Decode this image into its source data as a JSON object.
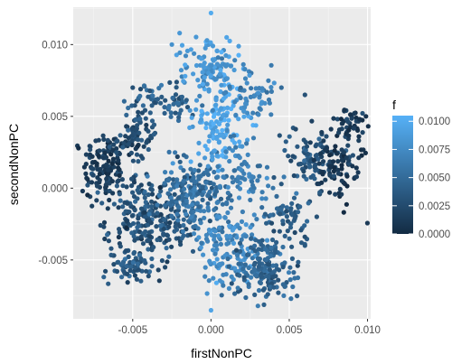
{
  "chart_data": {
    "type": "scatter",
    "xlabel": "firstNonPC",
    "ylabel": "secondNonPC",
    "xlim": [
      -0.0088,
      0.0102
    ],
    "ylim": [
      -0.0091,
      0.0126
    ],
    "x_ticks": [
      -0.005,
      0.0,
      0.005,
      0.01
    ],
    "x_tick_labels": [
      "-0.005",
      "0.000",
      "0.005",
      "0.010"
    ],
    "y_ticks": [
      -0.005,
      0.0,
      0.005,
      0.01
    ],
    "y_tick_labels": [
      "-0.005",
      "0.000",
      "0.005",
      "0.010"
    ],
    "grid": true,
    "background": "#ebebeb",
    "legend": {
      "title": "f",
      "position": "right",
      "values": [
        0.0,
        0.0025,
        0.005,
        0.0075,
        0.01
      ],
      "labels": [
        "0.0000",
        "0.0025",
        "0.0050",
        "0.0075",
        "0.0100"
      ],
      "low_color": "#132b43",
      "high_color": "#56b1f7"
    },
    "color_range": [
      0.0,
      0.0105
    ],
    "clusters": [
      {
        "center": [
          -0.0068,
          0.0015
        ],
        "spread": [
          0.0009,
          0.0017
        ],
        "count": 130,
        "f": 0.0015
      },
      {
        "center": [
          -0.0048,
          0.0035
        ],
        "spread": [
          0.0009,
          0.001
        ],
        "count": 80,
        "f": 0.0025
      },
      {
        "center": [
          -0.004,
          -0.002
        ],
        "spread": [
          0.0018,
          0.002
        ],
        "count": 260,
        "f": 0.003
      },
      {
        "center": [
          -0.005,
          -0.0055
        ],
        "spread": [
          0.001,
          0.0008
        ],
        "count": 60,
        "f": 0.0035
      },
      {
        "center": [
          -0.001,
          -0.0005
        ],
        "spread": [
          0.0016,
          0.0018
        ],
        "count": 200,
        "f": 0.0055
      },
      {
        "center": [
          -0.003,
          0.006
        ],
        "spread": [
          0.0015,
          0.0011
        ],
        "count": 70,
        "f": 0.0045
      },
      {
        "center": [
          0.0,
          0.0085
        ],
        "spread": [
          0.0012,
          0.0012
        ],
        "count": 110,
        "f": 0.0085
      },
      {
        "center": [
          0.0005,
          0.0045
        ],
        "spread": [
          0.0011,
          0.002
        ],
        "count": 130,
        "f": 0.0095
      },
      {
        "center": [
          0.0025,
          0.0065
        ],
        "spread": [
          0.0012,
          0.0011
        ],
        "count": 60,
        "f": 0.007
      },
      {
        "center": [
          0.0022,
          0.0008
        ],
        "spread": [
          0.0011,
          0.0015
        ],
        "count": 70,
        "f": 0.0065
      },
      {
        "center": [
          0.001,
          -0.004
        ],
        "spread": [
          0.0014,
          0.0017
        ],
        "count": 130,
        "f": 0.0075
      },
      {
        "center": [
          0.0035,
          -0.0055
        ],
        "spread": [
          0.0014,
          0.0015
        ],
        "count": 170,
        "f": 0.0045
      },
      {
        "center": [
          0.005,
          -0.002
        ],
        "spread": [
          0.0011,
          0.0012
        ],
        "count": 60,
        "f": 0.004
      },
      {
        "center": [
          0.0065,
          0.002
        ],
        "spread": [
          0.0013,
          0.0014
        ],
        "count": 90,
        "f": 0.003
      },
      {
        "center": [
          0.0082,
          0.0015
        ],
        "spread": [
          0.001,
          0.0017
        ],
        "count": 90,
        "f": 0.001
      },
      {
        "center": [
          0.009,
          0.0045
        ],
        "spread": [
          0.0008,
          0.0006
        ],
        "count": 40,
        "f": 0.001
      }
    ],
    "extra_points": [
      [
        0.0,
        0.0122,
        0.01
      ],
      [
        -0.0025,
        0.01,
        0.008
      ],
      [
        -0.002,
        0.0108,
        0.0085
      ],
      [
        0.001,
        0.0105,
        0.0095
      ],
      [
        -0.005,
        0.007,
        0.003
      ],
      [
        -0.0045,
        0.0069,
        0.0025
      ],
      [
        0.0045,
        0.007,
        0.005
      ],
      [
        0.006,
        0.0065,
        0.003
      ],
      [
        0.0095,
        0.0048,
        0.0005
      ],
      [
        0.0099,
        0.005,
        0.0005
      ],
      [
        -0.008,
        0.001,
        0.001
      ],
      [
        -0.0082,
        -0.0002,
        0.0012
      ],
      [
        0.0,
        -0.0085,
        0.0095
      ],
      [
        0.003,
        -0.0082,
        0.0065
      ],
      [
        0.0055,
        -0.0075,
        0.004
      ],
      [
        0.006,
        -0.004,
        0.0035
      ],
      [
        -0.006,
        -0.0058,
        0.003
      ]
    ]
  }
}
